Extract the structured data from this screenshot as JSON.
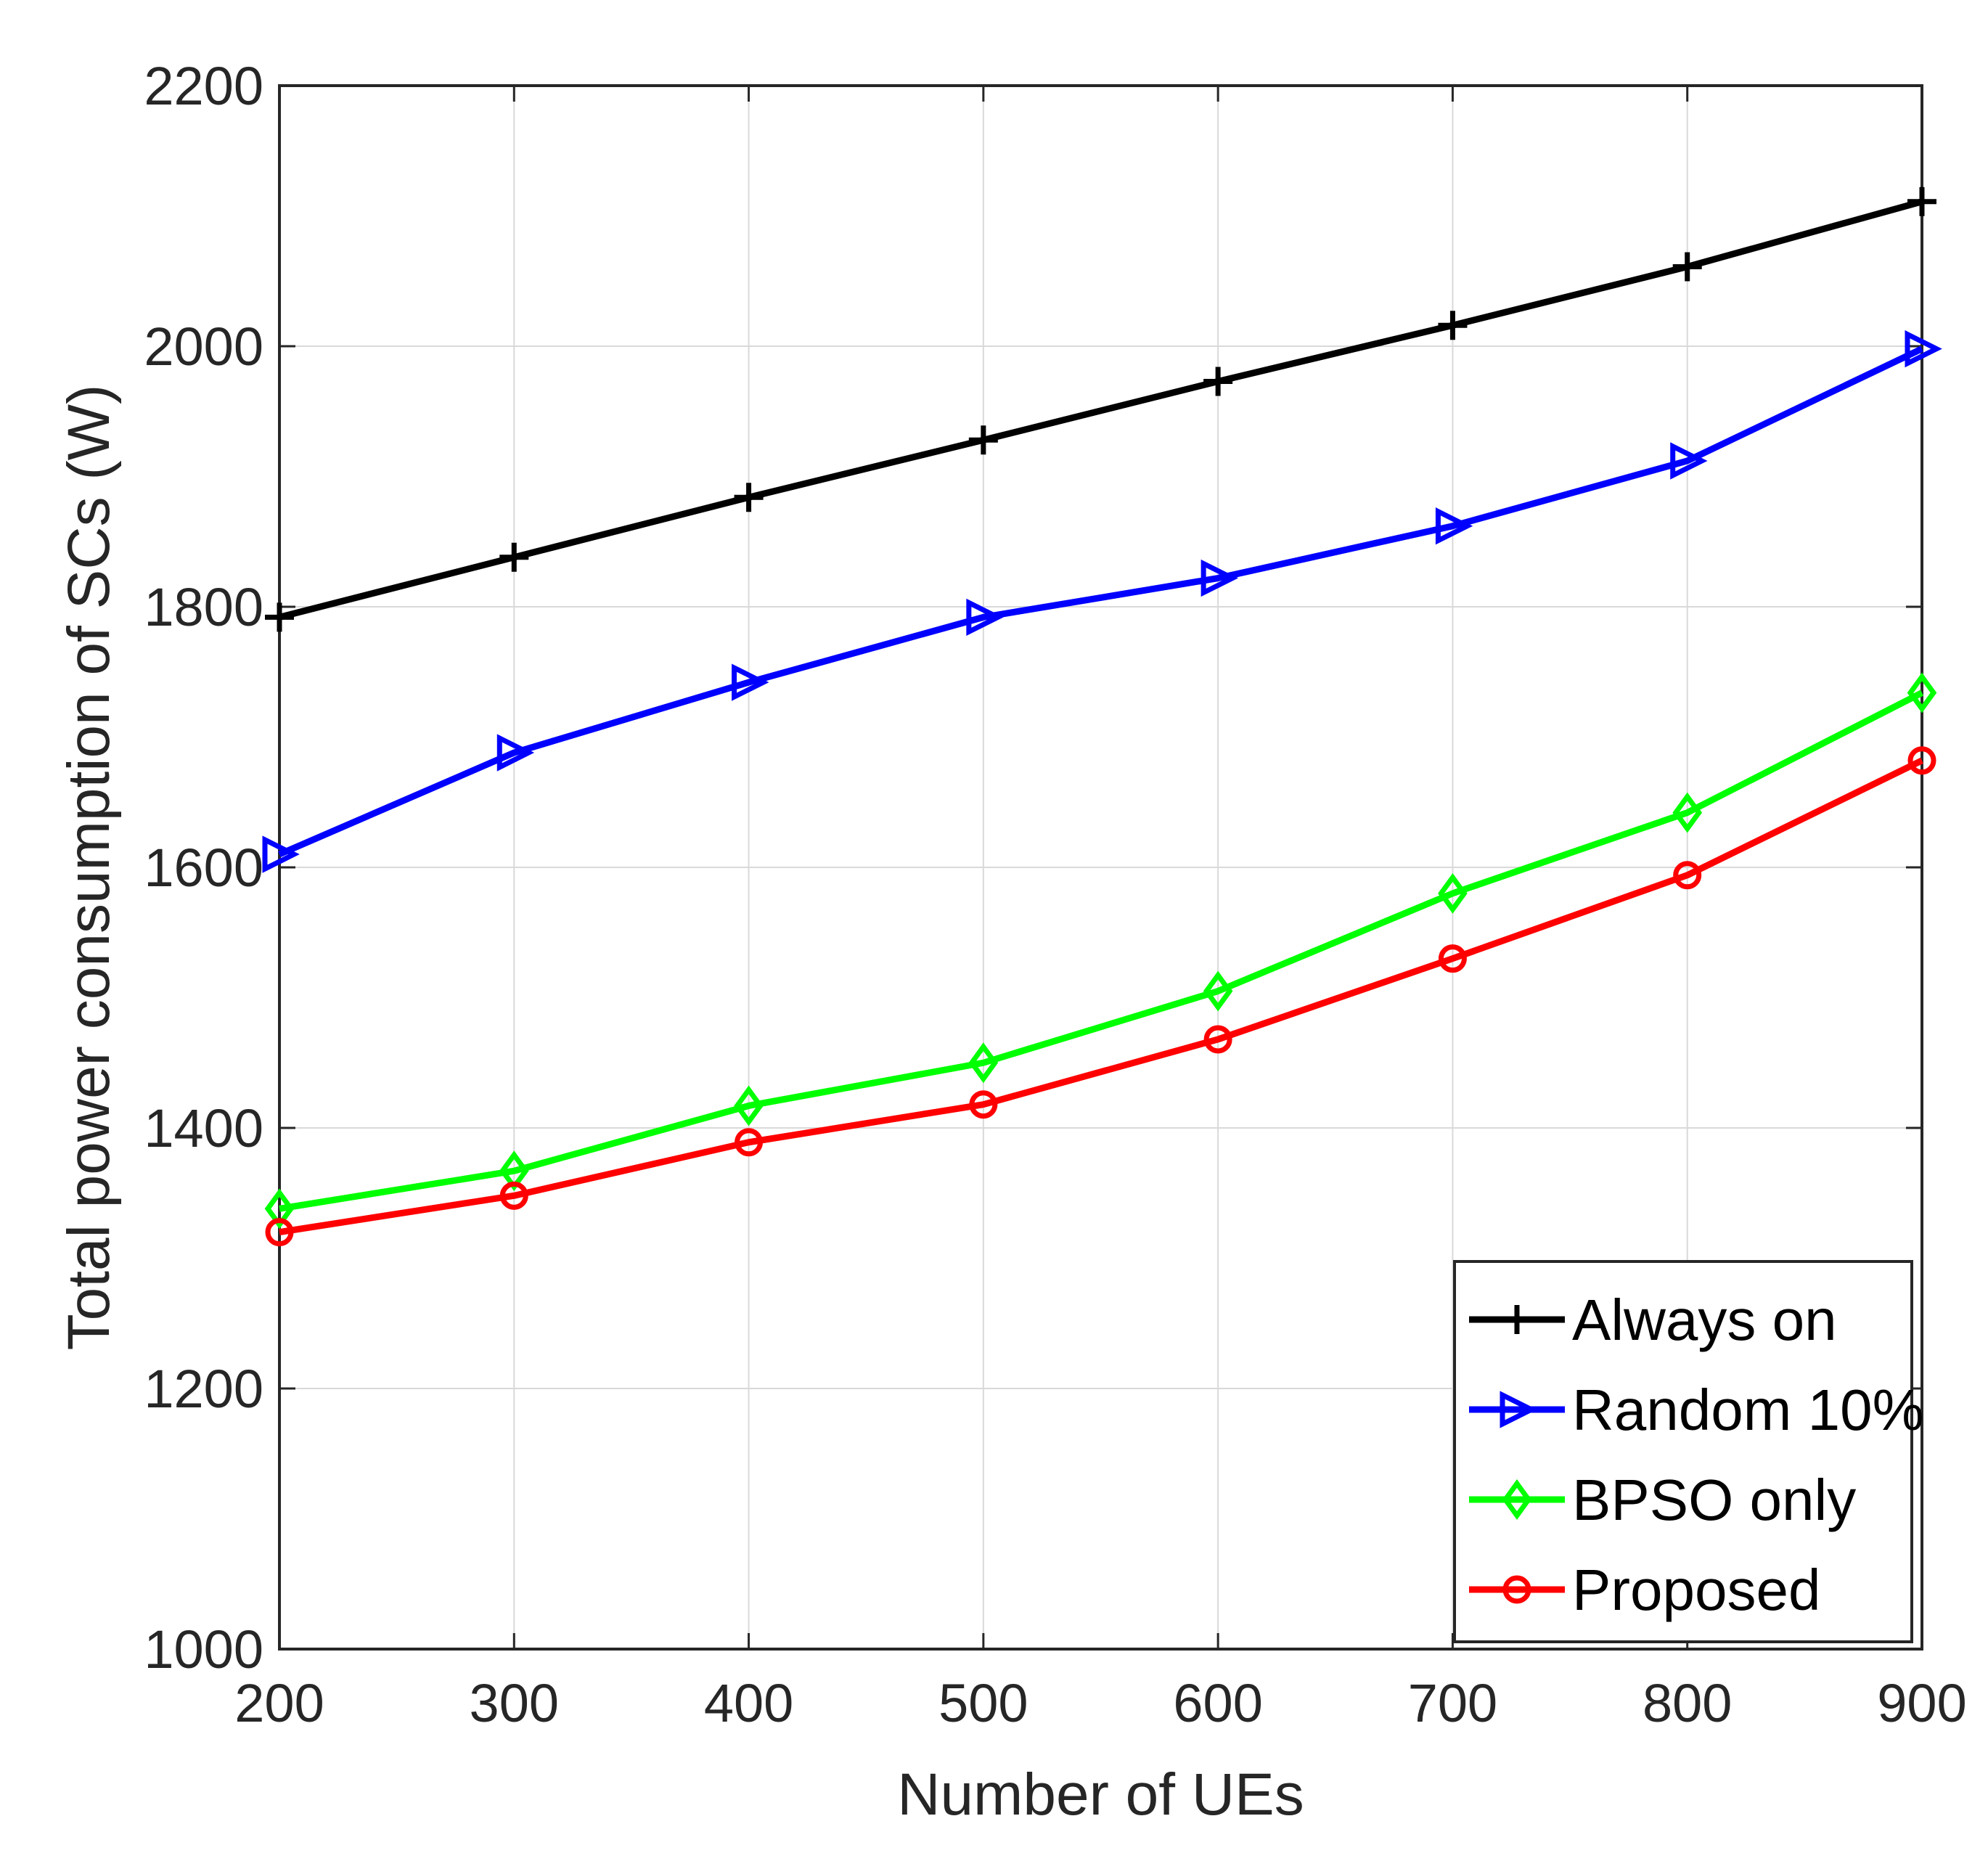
{
  "chart_data": {
    "type": "line",
    "xlabel": "Number of UEs",
    "ylabel": "Total power consumption of SCs (W)",
    "x": [
      200,
      300,
      400,
      500,
      600,
      700,
      800,
      900
    ],
    "xlim": [
      200,
      900
    ],
    "ylim": [
      1000,
      2200
    ],
    "xticks": [
      "200",
      "300",
      "400",
      "500",
      "600",
      "700",
      "800",
      "900"
    ],
    "yticks": [
      "1000",
      "1200",
      "1400",
      "1600",
      "1800",
      "2000",
      "2200"
    ],
    "grid": true,
    "legend_position": "bottom-right",
    "series": [
      {
        "name": "Always on",
        "color": "#000000",
        "marker": "plus",
        "values": [
          1792,
          1838,
          1884,
          1928,
          1973,
          2016,
          2061,
          2111
        ]
      },
      {
        "name": "Random 10%",
        "color": "#0000ff",
        "marker": "triangle-right",
        "values": [
          1610,
          1688,
          1742,
          1792,
          1822,
          1862,
          1912,
          1998
        ]
      },
      {
        "name": "BPSO only",
        "color": "#00ff00",
        "marker": "diamond",
        "values": [
          1338,
          1367,
          1417,
          1450,
          1505,
          1580,
          1642,
          1734
        ]
      },
      {
        "name": "Proposed",
        "color": "#ff0000",
        "marker": "circle",
        "values": [
          1320,
          1348,
          1389,
          1418,
          1468,
          1530,
          1594,
          1682
        ]
      }
    ]
  }
}
